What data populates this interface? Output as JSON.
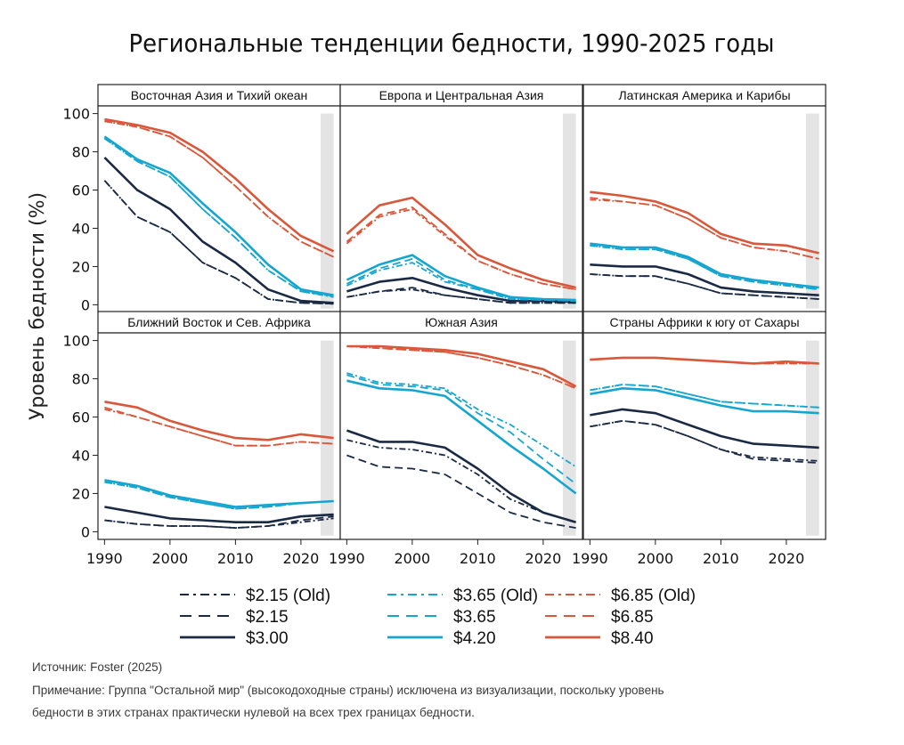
{
  "title": "Региональные тенденции бедности, 1990-2025 годы",
  "ylabel": "Уровень бедности (%)",
  "source": "Источник: Foster (2025)",
  "note_line1": "Примечание: Группа \"Остальной мир\" (высокодоходные страны) исключена из визуализации, поскольку уровень",
  "note_line2": "бедности в этих странах практически нулевой на всех трех границах бедности.",
  "colors": {
    "navy": "#1b2a44",
    "cyan": "#14a6d0",
    "orange": "#d9573a",
    "shade": "#e4e4e4"
  },
  "legend": [
    {
      "label": "$2.15 (Old)",
      "color": "navy",
      "style": "dashdot"
    },
    {
      "label": "$2.15",
      "color": "navy",
      "style": "longdash"
    },
    {
      "label": "$3.00",
      "color": "navy",
      "style": "solid"
    },
    {
      "label": "$3.65 (Old)",
      "color": "cyan",
      "style": "dashdot"
    },
    {
      "label": "$3.65",
      "color": "cyan",
      "style": "longdash"
    },
    {
      "label": "$4.20",
      "color": "cyan",
      "style": "solid"
    },
    {
      "label": "$6.85 (Old)",
      "color": "orange",
      "style": "dashdot"
    },
    {
      "label": "$6.85",
      "color": "orange",
      "style": "longdash"
    },
    {
      "label": "$8.40",
      "color": "orange",
      "style": "solid"
    }
  ],
  "chart_data": {
    "type": "line",
    "xlim": [
      1989,
      2026
    ],
    "ylim": [
      -4,
      104
    ],
    "xticks": [
      1990,
      2000,
      2010,
      2020
    ],
    "yticks": [
      0,
      20,
      40,
      60,
      80,
      100
    ],
    "shaded_years": [
      2023,
      2025
    ],
    "x": [
      1990,
      1995,
      2000,
      2005,
      2010,
      2015,
      2020,
      2025
    ],
    "panels": [
      {
        "title": "Восточная Азия и Тихий океан",
        "series": {
          "$2.15 (Old)": [
            65,
            46,
            38,
            22,
            14,
            3,
            1,
            0.5
          ],
          "$2.15": [
            65,
            46,
            38,
            22,
            14,
            3,
            1,
            0.5
          ],
          "$3.00": [
            77,
            60,
            50,
            33,
            22,
            8,
            2,
            1
          ],
          "$3.65 (Old)": [
            87,
            75,
            67,
            50,
            35,
            18,
            7,
            4
          ],
          "$3.65": [
            87,
            75,
            67,
            50,
            35,
            18,
            7,
            4.5
          ],
          "$4.20": [
            88,
            76,
            69,
            53,
            38,
            21,
            8,
            5
          ],
          "$6.85 (Old)": [
            96,
            93,
            88,
            77,
            62,
            46,
            33,
            25
          ],
          "$6.85": [
            96,
            93,
            88,
            77,
            62,
            46,
            33,
            25
          ],
          "$8.40": [
            97,
            94,
            90,
            80,
            66,
            50,
            36,
            28
          ]
        }
      },
      {
        "title": "Европа и Центральная Азия",
        "series": {
          "$2.15 (Old)": [
            4,
            7,
            8,
            5,
            3,
            1,
            1,
            1
          ],
          "$2.15": [
            4,
            7,
            9,
            5,
            3,
            1,
            1,
            1
          ],
          "$3.00": [
            7,
            12,
            14,
            9,
            5,
            2,
            2,
            1.5
          ],
          "$3.65 (Old)": [
            10,
            18,
            22,
            12,
            8,
            3,
            2.5,
            2
          ],
          "$3.65": [
            11,
            19,
            24,
            13,
            8,
            3,
            2.5,
            2
          ],
          "$4.20": [
            13,
            21,
            26,
            15,
            9,
            4,
            3,
            2.5
          ],
          "$6.85 (Old)": [
            32,
            46,
            50,
            36,
            23,
            16,
            11,
            8
          ],
          "$6.85": [
            33,
            47,
            51,
            37,
            23,
            16,
            11,
            8
          ],
          "$8.40": [
            37,
            52,
            56,
            42,
            26,
            19,
            13,
            9
          ]
        }
      },
      {
        "title": "Латинская Америка и Карибы",
        "series": {
          "$2.15 (Old)": [
            16,
            15,
            15,
            11,
            6,
            5,
            4,
            3
          ],
          "$2.15": [
            16,
            15,
            15,
            11,
            6,
            5,
            4,
            3
          ],
          "$3.00": [
            21,
            20,
            20,
            16,
            9,
            7,
            6,
            5
          ],
          "$3.65 (Old)": [
            31,
            29,
            29,
            24,
            15,
            12,
            10,
            8
          ],
          "$3.65": [
            31,
            29,
            29,
            24,
            15,
            12,
            10,
            8
          ],
          "$4.20": [
            32,
            30,
            30,
            25,
            16,
            13,
            11,
            9
          ],
          "$6.85 (Old)": [
            55,
            54,
            52,
            45,
            35,
            30,
            28,
            24
          ],
          "$6.85": [
            56,
            54,
            52,
            45,
            35,
            30,
            28,
            24
          ],
          "$8.40": [
            59,
            57,
            54,
            48,
            37,
            32,
            31,
            27
          ]
        }
      },
      {
        "title": "Ближний Восток и Сев. Африка",
        "series": {
          "$2.15 (Old)": [
            6,
            4,
            3,
            3,
            2,
            3,
            5,
            7
          ],
          "$2.15": [
            6,
            4,
            3,
            3,
            2,
            3,
            6,
            8
          ],
          "$3.00": [
            13,
            10,
            7,
            6,
            5,
            5,
            8,
            9
          ],
          "$3.65 (Old)": [
            26,
            23,
            18,
            15,
            12,
            13,
            15,
            16
          ],
          "$3.65": [
            26,
            23,
            18,
            15,
            12,
            13,
            15,
            16
          ],
          "$4.20": [
            27,
            24,
            19,
            16,
            13,
            14,
            15,
            16
          ],
          "$6.85 (Old)": [
            64,
            60,
            55,
            50,
            45,
            45,
            47,
            46
          ],
          "$6.85": [
            65,
            60,
            55,
            50,
            45,
            45,
            47,
            46
          ],
          "$8.40": [
            68,
            65,
            58,
            53,
            49,
            48,
            51,
            49
          ]
        }
      },
      {
        "title": "Южная Азия",
        "series": {
          "$2.15 (Old)": [
            48,
            44,
            43,
            40,
            30,
            17,
            10,
            5
          ],
          "$2.15": [
            40,
            34,
            33,
            30,
            20,
            10,
            5,
            2
          ],
          "$3.00": [
            53,
            47,
            47,
            44,
            33,
            20,
            10,
            5
          ],
          "$3.65 (Old)": [
            83,
            78,
            77,
            75,
            64,
            56,
            45,
            34
          ],
          "$3.65": [
            82,
            77,
            76,
            74,
            62,
            52,
            38,
            25
          ],
          "$4.20": [
            79,
            75,
            74,
            71,
            58,
            45,
            33,
            20
          ],
          "$6.85 (Old)": [
            97,
            96,
            95,
            94,
            91,
            87,
            82,
            75
          ],
          "$6.85": [
            97,
            96,
            95,
            94,
            91,
            87,
            82,
            75
          ],
          "$8.40": [
            97,
            97,
            96,
            95,
            93,
            89,
            85,
            76
          ]
        }
      },
      {
        "title": "Страны Африки к югу от Сахары",
        "series": {
          "$2.15 (Old)": [
            55,
            58,
            56,
            50,
            43,
            39,
            38,
            37
          ],
          "$2.15": [
            55,
            58,
            56,
            50,
            43,
            38,
            37,
            36
          ],
          "$3.00": [
            61,
            64,
            62,
            56,
            50,
            46,
            45,
            44
          ],
          "$3.65 (Old)": [
            74,
            77,
            76,
            72,
            68,
            67,
            66,
            65
          ],
          "$3.65": [
            74,
            77,
            76,
            72,
            68,
            67,
            66,
            65
          ],
          "$4.20": [
            72,
            75,
            74,
            70,
            66,
            63,
            63,
            62
          ],
          "$6.85 (Old)": [
            90,
            91,
            91,
            90,
            89,
            88,
            88,
            88
          ],
          "$6.85": [
            90,
            91,
            91,
            90,
            89,
            88,
            88,
            88
          ],
          "$8.40": [
            90,
            91,
            91,
            90,
            89,
            88,
            89,
            88
          ]
        }
      }
    ]
  }
}
